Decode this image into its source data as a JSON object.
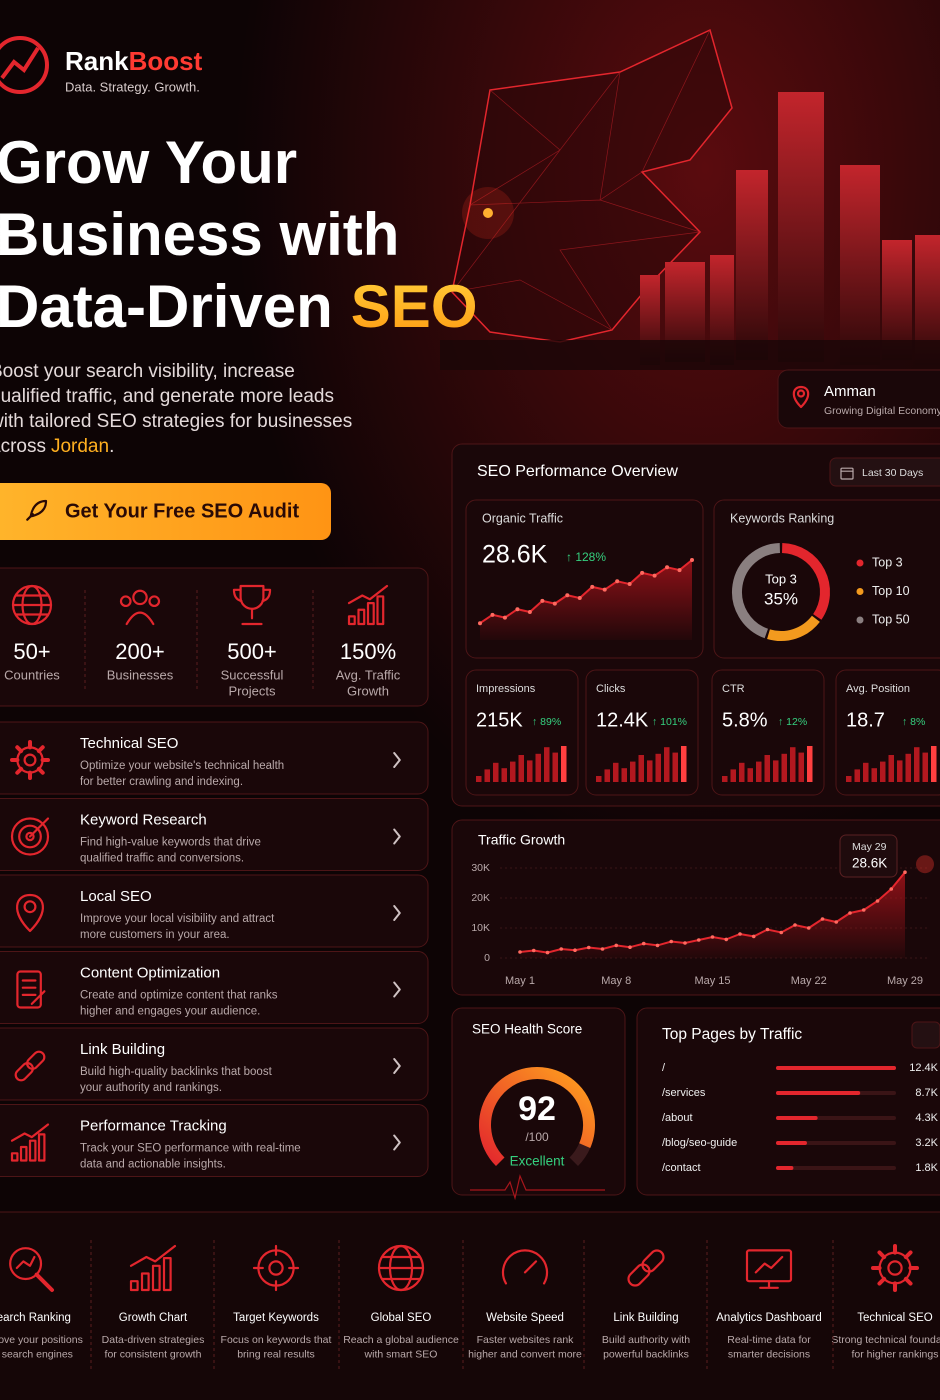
{
  "brand": {
    "name_first": "Rank",
    "name_second": "Boost",
    "tagline": "Data. Strategy. Growth."
  },
  "hero": {
    "title_lines": [
      "Grow Your",
      "Business with"
    ],
    "title_last": "Data-Driven",
    "title_highlight": "SEO",
    "paragraph_lines": [
      "Boost your search visibility, increase",
      "qualified traffic, and generate more leads",
      "with tailored SEO strategies for businesses"
    ],
    "paragraph_last": {
      "before": "across",
      "highlight": "Jordan",
      "after": "."
    },
    "cta": "Get Your Free SEO Audit"
  },
  "stats": [
    {
      "value": "50+",
      "label": [
        "Countries"
      ]
    },
    {
      "value": "200+",
      "label": [
        "Businesses"
      ]
    },
    {
      "value": "500+",
      "label": [
        "Successful",
        "Projects"
      ]
    },
    {
      "value": "150%",
      "label": [
        "Avg. Traffic",
        "Growth"
      ]
    }
  ],
  "services": [
    {
      "title": "Technical SEO",
      "desc": [
        "Optimize your website's technical health",
        "for better crawling and indexing."
      ]
    },
    {
      "title": "Keyword Research",
      "desc": [
        "Find high-value keywords that drive",
        "qualified traffic and conversions."
      ]
    },
    {
      "title": "Local SEO",
      "desc": [
        "Improve your local visibility and attract",
        "more customers in your area."
      ]
    },
    {
      "title": "Content Optimization",
      "desc": [
        "Create and optimize content that ranks",
        "higher and engages your audience."
      ]
    },
    {
      "title": "Link Building",
      "desc": [
        "Build high-quality backlinks that boost",
        "your authority and rankings."
      ]
    },
    {
      "title": "Performance Tracking",
      "desc": [
        "Track your SEO performance with real-time",
        "data and actionable insights."
      ]
    }
  ],
  "location": {
    "city": "Amman",
    "subtitle": "Growing Digital Economy"
  },
  "dashboard": {
    "title": "SEO Performance Overview",
    "range": "Last 30 Days",
    "organic": {
      "label": "Organic Traffic",
      "value": "28.6K",
      "change": "↑ 128%",
      "trend": [
        6000,
        9000,
        8000,
        11000,
        10000,
        14000,
        13000,
        16000,
        15000,
        19000,
        18000,
        21000,
        20000,
        24000,
        23000,
        26000,
        25000,
        28600
      ]
    },
    "keywords": {
      "label": "Keywords Ranking",
      "center_label": "Top 3",
      "center_value": "35%",
      "segments": [
        {
          "name": "Top 3",
          "color": "#e3262d",
          "value": 35
        },
        {
          "name": "Top 10",
          "color": "#f39a1e",
          "value": 20
        },
        {
          "name": "Top 50",
          "color": "#8a7f80",
          "value": 45
        }
      ]
    },
    "metrics": [
      {
        "label": "Impressions",
        "value": "215K",
        "change": "↑ 89%"
      },
      {
        "label": "Clicks",
        "value": "12.4K",
        "change": "↑ 101%"
      },
      {
        "label": "CTR",
        "value": "5.8%",
        "change": "↑ 12%"
      },
      {
        "label": "Avg. Position",
        "value": "18.7",
        "change": "↑ 8%"
      }
    ]
  },
  "chart_data": {
    "type": "line",
    "title": "Traffic Growth",
    "color": "#e3262d",
    "x": [
      "May 1",
      "May 2",
      "May 3",
      "May 4",
      "May 5",
      "May 6",
      "May 7",
      "May 8",
      "May 9",
      "May 10",
      "May 11",
      "May 12",
      "May 13",
      "May 14",
      "May 15",
      "May 16",
      "May 17",
      "May 18",
      "May 19",
      "May 20",
      "May 21",
      "May 22",
      "May 23",
      "May 24",
      "May 25",
      "May 26",
      "May 27",
      "May 28",
      "May 29"
    ],
    "values": [
      2000,
      2500,
      1800,
      3000,
      2600,
      3500,
      3000,
      4200,
      3600,
      4800,
      4200,
      5500,
      5000,
      6000,
      7000,
      6200,
      8000,
      7200,
      9500,
      8500,
      11000,
      10000,
      13000,
      12000,
      15000,
      16000,
      19000,
      23000,
      28600
    ],
    "xticks": [
      "May 1",
      "May 8",
      "May 15",
      "May 22",
      "May 29"
    ],
    "ylim": [
      0,
      30000
    ],
    "yticks": [
      0,
      {
        "value": 10000,
        "label": "10K"
      },
      {
        "value": 20000,
        "label": "20K"
      },
      {
        "value": 30000,
        "label": "30K"
      }
    ],
    "tooltip": {
      "date": "May 29",
      "value": "28.6K"
    }
  },
  "health": {
    "title": "SEO Health Score",
    "score": 92,
    "scale": {
      "value": 100,
      "label": "/100"
    },
    "status": "Excellent"
  },
  "top_pages": {
    "title": "Top Pages by Traffic",
    "pages": [
      "/",
      "/services",
      "/about",
      "/blog/seo-guide",
      "/contact"
    ],
    "values": [
      12400,
      8700,
      4300,
      3200,
      1800
    ],
    "value_labels": [
      "12.4K",
      "8.7K",
      "4.3K",
      "3.2K",
      "1.8K"
    ]
  },
  "features": [
    {
      "title": "Search Ranking",
      "desc": [
        "Improve your positions",
        "on search engines"
      ]
    },
    {
      "title": "Growth Chart",
      "desc": [
        "Data-driven strategies",
        "for consistent growth"
      ]
    },
    {
      "title": "Target Keywords",
      "desc": [
        "Focus on keywords that",
        "bring real results"
      ]
    },
    {
      "title": "Global SEO",
      "desc": [
        "Reach a global audience",
        "with smart SEO"
      ]
    },
    {
      "title": "Website Speed",
      "desc": [
        "Faster websites rank",
        "higher and convert more"
      ]
    },
    {
      "title": "Link Building",
      "desc": [
        "Build authority with",
        "powerful backlinks"
      ]
    },
    {
      "title": "Analytics Dashboard",
      "desc": [
        "Real-time data for",
        "smarter decisions"
      ]
    },
    {
      "title": "Technical SEO",
      "desc": [
        "Strong technical foundation",
        "for higher rankings"
      ]
    }
  ]
}
